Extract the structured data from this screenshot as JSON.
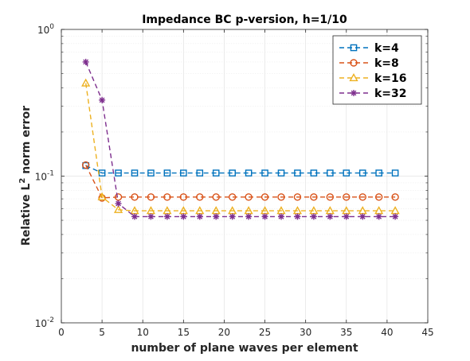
{
  "chart_data": {
    "type": "line",
    "title": "Impedance BC p-version, h=1/10",
    "xlabel": "number of plane waves per element",
    "ylabel": {
      "prefix": "Relative L",
      "sup": "2",
      "suffix": " norm error"
    },
    "xlim": [
      0,
      45
    ],
    "ylim": [
      0.01,
      1
    ],
    "yscale": "log",
    "grid": true,
    "minor_grid": true,
    "legend_position": "top-right",
    "x_ticks": [
      "0",
      "5",
      "10",
      "15",
      "20",
      "25",
      "30",
      "35",
      "40",
      "45"
    ],
    "y_ticks": [
      {
        "base": "10",
        "exp": "-2",
        "value": 0.01
      },
      {
        "base": "10",
        "exp": "-1",
        "value": 0.1
      },
      {
        "base": "10",
        "exp": "0",
        "value": 1
      }
    ],
    "series": [
      {
        "name": "k=4",
        "color": "#0072BD",
        "marker": "square",
        "x": [
          3,
          5,
          7,
          9,
          11,
          13,
          15,
          17,
          19,
          21,
          23,
          25,
          27,
          29,
          31,
          33,
          35,
          37,
          39,
          41
        ],
        "y": [
          0.118,
          0.105,
          0.105,
          0.105,
          0.105,
          0.105,
          0.105,
          0.105,
          0.105,
          0.105,
          0.105,
          0.105,
          0.105,
          0.105,
          0.105,
          0.105,
          0.105,
          0.105,
          0.105,
          0.105
        ]
      },
      {
        "name": "k=8",
        "color": "#D95319",
        "marker": "circle",
        "x": [
          3,
          5,
          7,
          9,
          11,
          13,
          15,
          17,
          19,
          21,
          23,
          25,
          27,
          29,
          31,
          33,
          35,
          37,
          39,
          41
        ],
        "y": [
          0.119,
          0.071,
          0.072,
          0.072,
          0.072,
          0.072,
          0.072,
          0.072,
          0.072,
          0.072,
          0.072,
          0.072,
          0.072,
          0.072,
          0.072,
          0.072,
          0.072,
          0.072,
          0.072,
          0.072
        ]
      },
      {
        "name": "k=16",
        "color": "#EDB120",
        "marker": "triangle",
        "x": [
          3,
          5,
          7,
          9,
          11,
          13,
          15,
          17,
          19,
          21,
          23,
          25,
          27,
          29,
          31,
          33,
          35,
          37,
          39,
          41
        ],
        "y": [
          0.43,
          0.072,
          0.059,
          0.058,
          0.058,
          0.058,
          0.058,
          0.058,
          0.058,
          0.058,
          0.058,
          0.058,
          0.058,
          0.058,
          0.058,
          0.058,
          0.058,
          0.058,
          0.058,
          0.058
        ]
      },
      {
        "name": "k=32",
        "color": "#7E2F8E",
        "marker": "asterisk",
        "x": [
          3,
          5,
          7,
          9,
          11,
          13,
          15,
          17,
          19,
          21,
          23,
          25,
          27,
          29,
          31,
          33,
          35,
          37,
          39,
          41
        ],
        "y": [
          0.6,
          0.33,
          0.065,
          0.053,
          0.053,
          0.053,
          0.053,
          0.053,
          0.053,
          0.053,
          0.053,
          0.053,
          0.053,
          0.053,
          0.053,
          0.053,
          0.053,
          0.053,
          0.053,
          0.053
        ]
      }
    ]
  }
}
